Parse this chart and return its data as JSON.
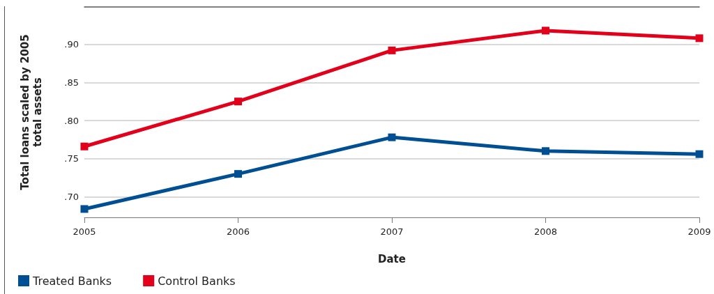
{
  "chart_data": {
    "type": "line",
    "xlabel": "Date",
    "ylabel": "Total loans scaled by 2005\ntotal assets",
    "x": [
      2005,
      2006,
      2007,
      2008,
      2009
    ],
    "series": [
      {
        "name": "Treated Banks",
        "color": "#004f93",
        "values": [
          0.684,
          0.73,
          0.778,
          0.76,
          0.756
        ]
      },
      {
        "name": "Control Banks",
        "color": "#e2001a",
        "values": [
          0.766,
          0.825,
          0.892,
          0.918,
          0.908
        ]
      }
    ],
    "xlim": [
      2005,
      2009
    ],
    "xticks": [
      2005,
      2006,
      2007,
      2008,
      2009
    ],
    "ylim": [
      0.673,
      0.949
    ],
    "yticks": [
      {
        "value": 0.7,
        "label": ".70"
      },
      {
        "value": 0.75,
        "label": ".75"
      },
      {
        "value": 0.8,
        "label": ".80"
      },
      {
        "value": 0.85,
        "label": ".85"
      },
      {
        "value": 0.9,
        "label": ".90"
      }
    ],
    "grid": "y",
    "legend": "bottom left",
    "marker": "square",
    "line_style": "solid"
  }
}
